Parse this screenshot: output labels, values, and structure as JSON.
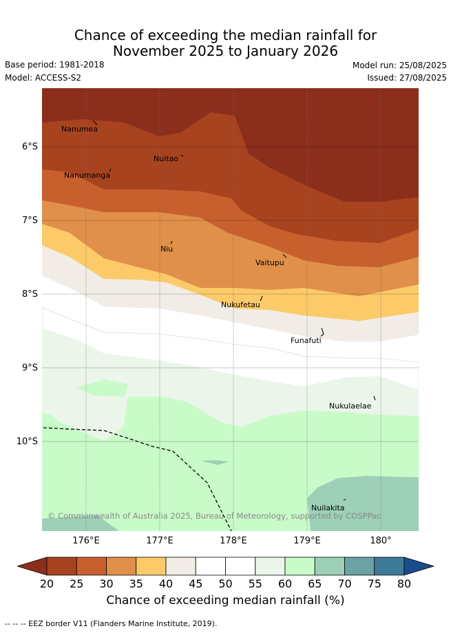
{
  "title": {
    "line1": "Chance of exceeding the median rainfall for",
    "line2": "November 2025 to January 2026"
  },
  "meta": {
    "base_period": "Base period: 1981-2018",
    "model": "Model: ACCESS-S2",
    "model_run": "Model run: 25/08/2025",
    "issued": "Issued: 27/08/2025"
  },
  "map": {
    "lat_labels": [
      "6°S",
      "7°S",
      "8°S",
      "9°S",
      "10°S"
    ],
    "lon_labels": [
      "176°E",
      "177°E",
      "178°E",
      "179°E",
      "180°"
    ],
    "places": [
      "Nanumea",
      "Nuitao",
      "Nanumanga",
      "Niu",
      "Vaitupu",
      "Nukufetau",
      "Funafuti",
      "Nukulaelae",
      "Nuilakita"
    ],
    "copyright": "© Commonwealth of Australia 2025, Bureau of Meteorology, supported by COSPPac",
    "eez_line_style": "dashed"
  },
  "colorbar": {
    "title": "Chance of exceeding median rainfall (%)",
    "ticks": [
      "20",
      "25",
      "30",
      "35",
      "40",
      "45",
      "50",
      "55",
      "60",
      "65",
      "70",
      "75",
      "80"
    ],
    "colors": [
      "#8b2e1c",
      "#a8431f",
      "#c8602e",
      "#e0904a",
      "#fdca6a",
      "#f1ece6",
      "#ffffff",
      "#ffffff",
      "#ebf5ea",
      "#c8fbc8",
      "#9ed0b7",
      "#6da2a4",
      "#3e7a99",
      "#1b4d8c"
    ]
  },
  "footer": "-- -- -- EEZ border V11 (Flanders Marine Institute, 2019)."
}
